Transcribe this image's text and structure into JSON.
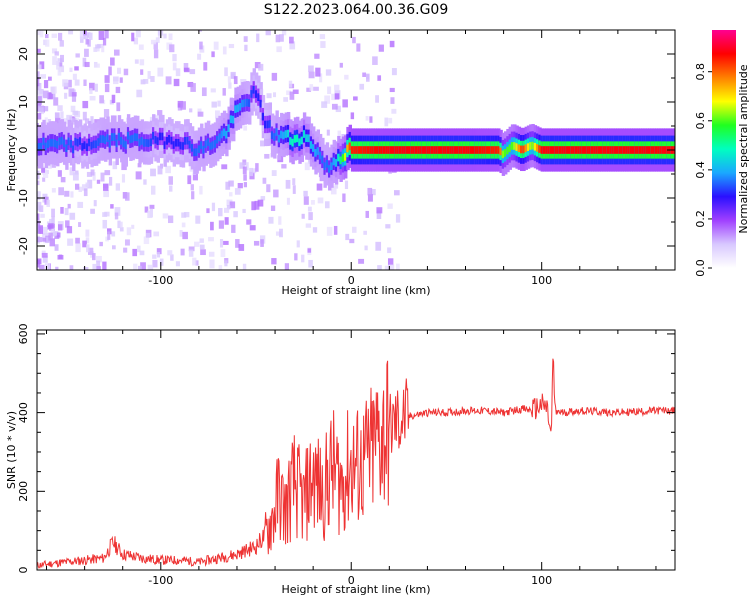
{
  "title": "S122.2023.064.00.36.G09",
  "chart_data": [
    {
      "type": "heatmap",
      "name": "spectrogram",
      "xlabel": "Height of straight line (km)",
      "ylabel": "Frequency (Hz)",
      "xlim": [
        -165,
        170
      ],
      "ylim": [
        -25,
        25
      ],
      "x_ticks": [
        -100,
        0,
        100
      ],
      "y_ticks": [
        -20,
        -10,
        0,
        10,
        20
      ],
      "colorbar": {
        "label": "Normalized spectral amplitude",
        "range": [
          0,
          0.97
        ],
        "ticks": [
          0.0,
          0.2,
          0.4,
          0.6,
          0.8
        ],
        "colormap": [
          "#ffffff",
          "#d8c8ff",
          "#a040ff",
          "#2a10ff",
          "#1aa8ff",
          "#00ffc0",
          "#20ff20",
          "#ffff00",
          "#ff8000",
          "#ff0000",
          "#ff0090"
        ]
      },
      "ridge": {
        "x": [
          -165,
          -150,
          -140,
          -130,
          -120,
          -110,
          -100,
          -90,
          -80,
          -70,
          -65,
          -60,
          -55,
          -50,
          -45,
          -40,
          -35,
          -30,
          -25,
          -20,
          -15,
          -12,
          -8,
          -4,
          0,
          20,
          60,
          78,
          80,
          85,
          90,
          95,
          100,
          140,
          170
        ],
        "frequency": [
          1,
          1,
          1,
          2,
          2,
          2,
          2,
          2,
          0,
          2,
          4,
          8,
          10,
          12,
          6,
          3,
          3,
          2,
          3,
          1,
          -2,
          -4,
          -2,
          -1,
          0,
          0,
          0,
          0,
          -1,
          1,
          0,
          1,
          0,
          0,
          0
        ],
        "amplitude": [
          0.35,
          0.35,
          0.3,
          0.35,
          0.35,
          0.35,
          0.3,
          0.3,
          0.35,
          0.35,
          0.4,
          0.4,
          0.35,
          0.3,
          0.3,
          0.35,
          0.4,
          0.5,
          0.45,
          0.4,
          0.35,
          0.35,
          0.4,
          0.6,
          0.85,
          0.88,
          0.88,
          0.85,
          0.6,
          0.6,
          0.85,
          0.6,
          0.88,
          0.88,
          0.88
        ]
      }
    },
    {
      "type": "line",
      "name": "snr",
      "xlabel": "Height of straight line (km)",
      "ylabel": "SNR (10 * v/v)",
      "xlim": [
        -165,
        170
      ],
      "ylim": [
        0,
        610
      ],
      "x_ticks": [
        -100,
        0,
        100
      ],
      "y_ticks": [
        0,
        200,
        400,
        600
      ],
      "color": "#ee3333",
      "x": [
        -165,
        -150,
        -140,
        -130,
        -125,
        -120,
        -110,
        -100,
        -90,
        -80,
        -70,
        -60,
        -50,
        -45,
        -40,
        -38,
        -35,
        -30,
        -25,
        -20,
        -15,
        -10,
        -5,
        0,
        5,
        10,
        15,
        20,
        25,
        30,
        40,
        50,
        60,
        70,
        80,
        90,
        95,
        100,
        103,
        105,
        106,
        107,
        108,
        110,
        120,
        140,
        160,
        170
      ],
      "values": [
        12,
        20,
        25,
        30,
        70,
        40,
        30,
        25,
        25,
        20,
        30,
        40,
        60,
        90,
        150,
        200,
        150,
        220,
        170,
        240,
        190,
        260,
        220,
        270,
        260,
        290,
        340,
        360,
        380,
        390,
        400,
        400,
        405,
        405,
        400,
        410,
        405,
        420,
        410,
        330,
        560,
        390,
        405,
        400,
        405,
        400,
        405,
        405
      ]
    }
  ]
}
